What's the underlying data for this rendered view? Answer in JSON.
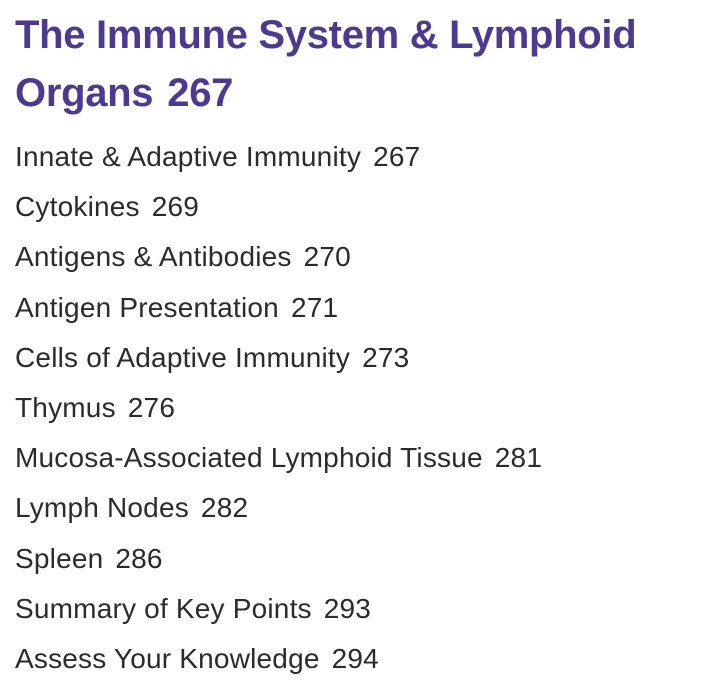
{
  "chapter": {
    "title": "The Immune System & Lymphoid Organs",
    "page": "267",
    "title_color": "#4b3a8f"
  },
  "sections": [
    {
      "label": "Innate & Adaptive Immunity",
      "page": "267"
    },
    {
      "label": "Cytokines",
      "page": "269"
    },
    {
      "label": "Antigens & Antibodies",
      "page": "270"
    },
    {
      "label": "Antigen Presentation",
      "page": "271"
    },
    {
      "label": "Cells of Adaptive Immunity",
      "page": "273"
    },
    {
      "label": "Thymus",
      "page": "276"
    },
    {
      "label": "Mucosa-Associated Lymphoid Tissue",
      "page": "281"
    },
    {
      "label": "Lymph Nodes",
      "page": "282"
    },
    {
      "label": "Spleen",
      "page": "286"
    },
    {
      "label": "Summary of Key Points",
      "page": "293"
    },
    {
      "label": "Assess Your Knowledge",
      "page": "294"
    }
  ]
}
